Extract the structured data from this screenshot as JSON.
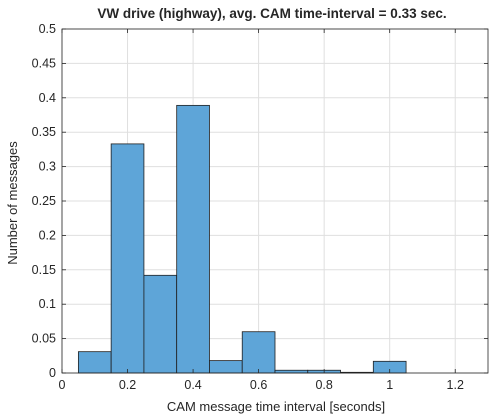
{
  "chart_data": {
    "type": "bar",
    "title": "VW drive (highway), avg. CAM time-interval = 0.33 sec.",
    "xlabel": "CAM message time interval [seconds]",
    "ylabel": "Number of messages",
    "xlim": [
      0,
      1.3
    ],
    "ylim": [
      0,
      0.5
    ],
    "xticks": [
      0,
      0.2,
      0.4,
      0.6,
      0.8,
      1,
      1.2
    ],
    "xtick_labels": [
      "0",
      "0.2",
      "0.4",
      "0.6",
      "0.8",
      "1",
      "1.2"
    ],
    "yticks": [
      0,
      0.05,
      0.1,
      0.15,
      0.2,
      0.25,
      0.3,
      0.35,
      0.4,
      0.45,
      0.5
    ],
    "ytick_labels": [
      "0",
      "0.05",
      "0.1",
      "0.15",
      "0.2",
      "0.25",
      "0.3",
      "0.35",
      "0.4",
      "0.45",
      "0.5"
    ],
    "grid": true,
    "bar_color": "#5ea5d8",
    "bin_edges": [
      0.05,
      0.15,
      0.25,
      0.35,
      0.45,
      0.55,
      0.65,
      0.75,
      0.85,
      0.95,
      1.05
    ],
    "values": [
      0.031,
      0.333,
      0.142,
      0.389,
      0.018,
      0.06,
      0.004,
      0.004,
      0.001,
      0.017
    ]
  }
}
